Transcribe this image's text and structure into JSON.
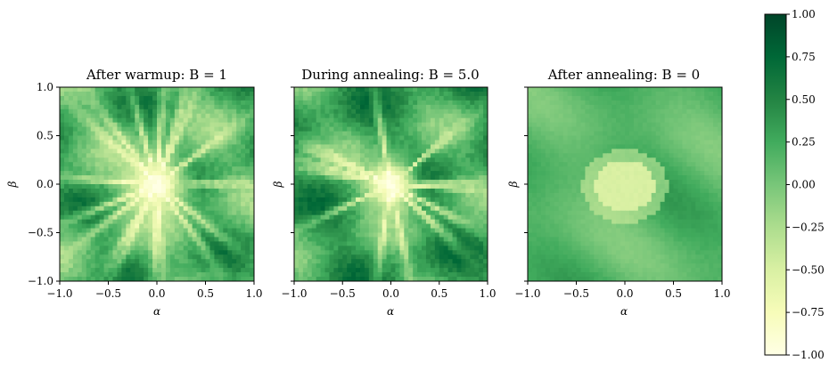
{
  "chart_data": [
    {
      "type": "heatmap",
      "title": "After warmup: B = 1",
      "xlabel": "α",
      "ylabel": "β",
      "xlim": [
        -1.0,
        1.0
      ],
      "ylim": [
        -1.0,
        1.0
      ],
      "xticks": [
        "−1.0",
        "−0.5",
        "0.0",
        "0.5",
        "1.0"
      ],
      "yticks": [
        "−1.0",
        "−0.5",
        "0.0",
        "0.5",
        "1.0"
      ],
      "show_yticklabels": true,
      "field": {
        "pattern": "burst",
        "center_value": -1.0,
        "outer_value": 0.2,
        "core_radius": 0.35,
        "rays": 18
      }
    },
    {
      "type": "heatmap",
      "title": "During annealing: B = 5.0",
      "xlabel": "α",
      "ylabel": "β",
      "xlim": [
        -1.0,
        1.0
      ],
      "ylim": [
        -1.0,
        1.0
      ],
      "xticks": [
        "−1.0",
        "−0.5",
        "0.0",
        "0.5",
        "1.0"
      ],
      "yticks": [
        "−1.0",
        "−0.5",
        "0.0",
        "0.5",
        "1.0"
      ],
      "show_yticklabels": false,
      "field": {
        "pattern": "burst",
        "center_value": -1.0,
        "outer_value": 0.3,
        "core_radius": 0.3,
        "rays": 14
      }
    },
    {
      "type": "heatmap",
      "title": "After annealing: B = 0",
      "xlabel": "α",
      "ylabel": "β",
      "xlim": [
        -1.0,
        1.0
      ],
      "ylim": [
        -1.0,
        1.0
      ],
      "xticks": [
        "−1.0",
        "−0.5",
        "0.0",
        "0.5",
        "1.0"
      ],
      "yticks": [
        "−1.0",
        "−0.5",
        "0.0",
        "0.5",
        "1.0"
      ],
      "show_yticklabels": false,
      "field": {
        "pattern": "blob",
        "center_value": -0.5,
        "outer_value": 0.15,
        "core_radius": 0.28,
        "rays": 0
      }
    }
  ],
  "colorbar": {
    "colormap": "YlGn",
    "vmin": -1.0,
    "vmax": 1.0,
    "ticks": [
      1.0,
      0.75,
      0.5,
      0.25,
      0.0,
      -0.25,
      -0.5,
      -0.75,
      -1.0
    ],
    "tick_labels": [
      "1.00",
      "0.75",
      "0.50",
      "0.25",
      "0.00",
      "−0.25",
      "−0.50",
      "−0.75",
      "−1.00"
    ],
    "colors": [
      "#ffffe5",
      "#f7fcb9",
      "#d9f0a3",
      "#addd8e",
      "#78c679",
      "#41ab5d",
      "#238443",
      "#006837",
      "#004529"
    ]
  }
}
